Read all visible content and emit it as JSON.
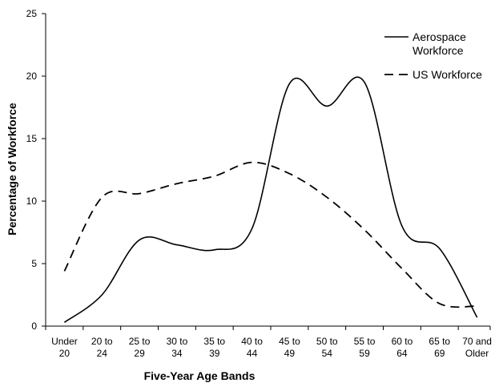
{
  "chart_data": {
    "type": "line",
    "categories": [
      [
        "Under",
        "20"
      ],
      [
        "20 to",
        "24"
      ],
      [
        "25 to",
        "29"
      ],
      [
        "30 to",
        "34"
      ],
      [
        "35 to",
        "39"
      ],
      [
        "40 to",
        "44"
      ],
      [
        "45 to",
        "49"
      ],
      [
        "50 to",
        "54"
      ],
      [
        "55 to",
        "59"
      ],
      [
        "60 to",
        "64"
      ],
      [
        "65 to",
        "69"
      ],
      [
        "70 and",
        "Older"
      ]
    ],
    "series": [
      {
        "name": "Aerospace Workforce",
        "style": "solid",
        "color": "#000000",
        "values": [
          0.3,
          2.5,
          6.9,
          6.5,
          6.1,
          7.8,
          19.4,
          17.6,
          19.5,
          8.0,
          6.2,
          0.7
        ]
      },
      {
        "name": "US Workforce",
        "style": "dashed",
        "color": "#000000",
        "values": [
          4.4,
          10.3,
          10.6,
          11.4,
          12.0,
          13.1,
          12.2,
          10.3,
          7.7,
          4.6,
          1.8,
          1.6
        ]
      }
    ],
    "xlabel": "Five-Year Age Bands",
    "ylabel": "Percentage of Workforce",
    "ylim": [
      0,
      25
    ],
    "yticks": [
      0,
      5,
      10,
      15,
      20,
      25
    ],
    "grid": false,
    "legend_position": "top-right"
  }
}
